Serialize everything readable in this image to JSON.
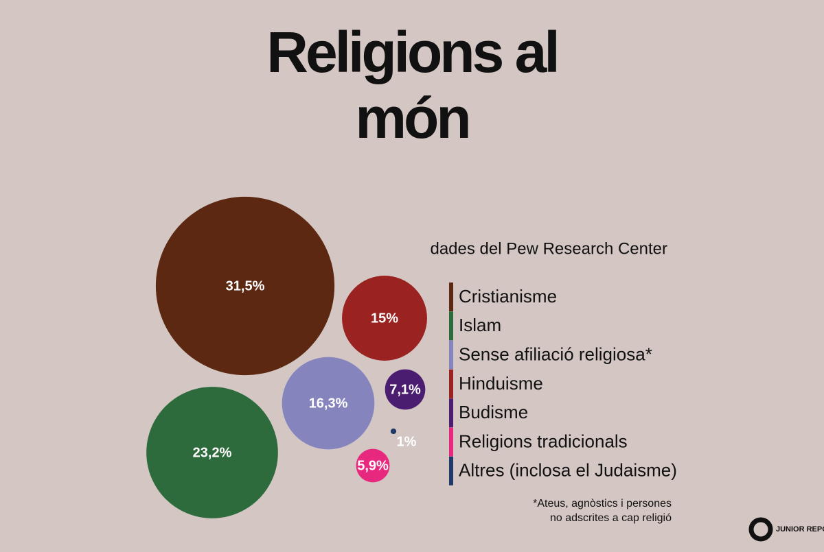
{
  "chart_data": {
    "type": "bubble",
    "title": "Religions al món",
    "subtitle": "dades del Pew Research Center",
    "categories": [
      "Cristianisme",
      "Islam",
      "Sense afiliació religiosa*",
      "Hinduisme",
      "Budisme",
      "Religions tradicionals",
      "Altres (inclosa el Judaisme)"
    ],
    "values": [
      31.5,
      23.2,
      16.3,
      15,
      7.1,
      5.9,
      1
    ],
    "value_labels": [
      "31,5%",
      "23,2%",
      "16,3%",
      "15%",
      "7,1%",
      "5,9%",
      "1%"
    ],
    "colors": [
      "#5c2812",
      "#2d6a3c",
      "#8584bd",
      "#9a2220",
      "#4b1d70",
      "#e8287e",
      "#1f3a68"
    ],
    "note": [
      "*Ateus, agnòstics i persones",
      "no adscrites a cap religió"
    ],
    "logo": "JUNIOR REPORT"
  }
}
